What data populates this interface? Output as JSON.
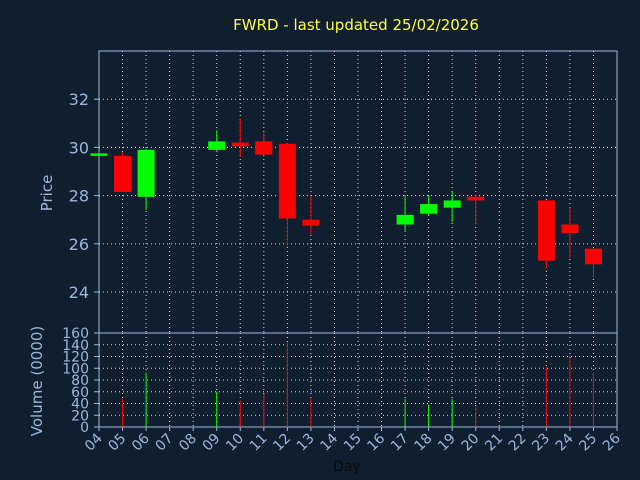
{
  "chart_data": {
    "type": "candlestick",
    "title": "FWRD - last updated 25/02/2026",
    "xlabel": "Day",
    "ylabel": "Price",
    "volume_label": "Volume (0000)",
    "x_ticks": [
      "04",
      "05",
      "06",
      "07",
      "08",
      "09",
      "10",
      "11",
      "12",
      "13",
      "14",
      "15",
      "16",
      "17",
      "18",
      "19",
      "20",
      "21",
      "22",
      "23",
      "24",
      "25",
      "26"
    ],
    "x_range": [
      4,
      26
    ],
    "price_ticks": [
      24,
      26,
      28,
      30,
      32
    ],
    "price_range": [
      22.3,
      34.0
    ],
    "volume_ticks": [
      0,
      20,
      40,
      60,
      80,
      100,
      120,
      140,
      160
    ],
    "volume_range": [
      0,
      160
    ],
    "grid": true,
    "colors": {
      "up": "#00ff00",
      "down": "#ff0000",
      "grid": "#ffffff",
      "axis": "#9ab8dc",
      "title": "#ffff33",
      "background": "#0f1f30"
    },
    "candles": [
      {
        "day": 4,
        "open": 29.65,
        "high": 29.8,
        "low": 29.65,
        "close": 29.75,
        "volume": 0
      },
      {
        "day": 5,
        "open": 29.65,
        "high": 29.8,
        "low": 28.15,
        "close": 28.15,
        "volume": 48
      },
      {
        "day": 6,
        "open": 27.95,
        "high": 29.95,
        "low": 27.4,
        "close": 29.9,
        "volume": 92
      },
      {
        "day": 9,
        "open": 29.9,
        "high": 30.7,
        "low": 29.8,
        "close": 30.25,
        "volume": 60
      },
      {
        "day": 10,
        "open": 30.2,
        "high": 31.2,
        "low": 29.6,
        "close": 30.05,
        "volume": 45
      },
      {
        "day": 11,
        "open": 30.25,
        "high": 30.6,
        "low": 29.7,
        "close": 29.7,
        "volume": 56
      },
      {
        "day": 12,
        "open": 30.15,
        "high": 30.2,
        "low": 25.9,
        "close": 27.05,
        "volume": 145
      },
      {
        "day": 13,
        "open": 27.0,
        "high": 28.0,
        "low": 26.4,
        "close": 26.75,
        "volume": 50
      },
      {
        "day": 17,
        "open": 26.8,
        "high": 28.0,
        "low": 26.5,
        "close": 27.2,
        "volume": 48
      },
      {
        "day": 18,
        "open": 27.25,
        "high": 28.0,
        "low": 27.2,
        "close": 27.65,
        "volume": 38
      },
      {
        "day": 19,
        "open": 27.5,
        "high": 28.2,
        "low": 26.9,
        "close": 27.8,
        "volume": 48
      },
      {
        "day": 20,
        "open": 27.95,
        "high": 28.05,
        "low": 26.8,
        "close": 27.8,
        "volume": 35
      },
      {
        "day": 23,
        "open": 27.8,
        "high": 27.8,
        "low": 25.0,
        "close": 25.3,
        "volume": 102
      },
      {
        "day": 24,
        "open": 26.8,
        "high": 27.5,
        "low": 25.4,
        "close": 26.45,
        "volume": 118
      },
      {
        "day": 25,
        "open": 25.8,
        "high": 25.8,
        "low": 24.6,
        "close": 25.15,
        "volume": 92
      }
    ]
  }
}
